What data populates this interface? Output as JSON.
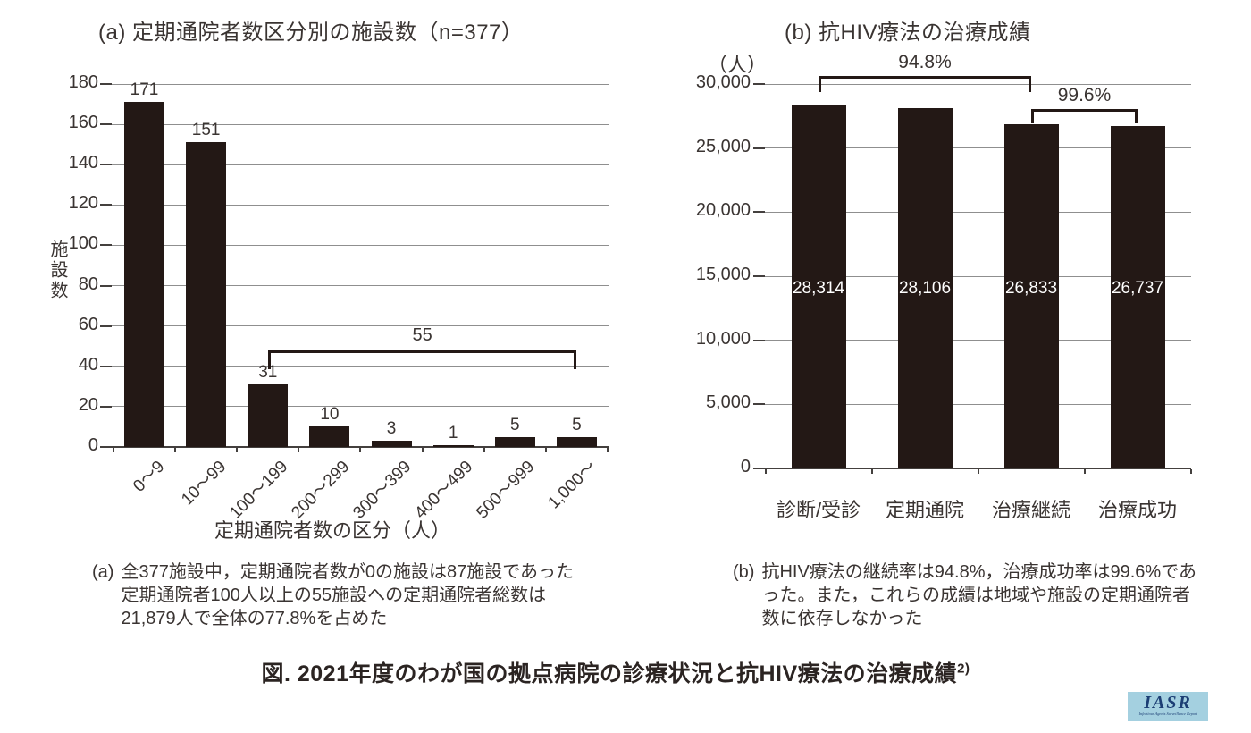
{
  "colors": {
    "bar": "#231815",
    "grid": "#8f8f8f",
    "axis": "#44403e",
    "text": "#3a3432",
    "bar_value_light": "#ffffff",
    "logo_bg": "#a4d0e0",
    "logo_fg": "#1c3e74"
  },
  "chart_data": [
    {
      "id": "a",
      "type": "bar",
      "title": "(a) 定期通院者数区分別の施設数（n=377）",
      "ylabel": "施設数",
      "xlabel": "定期通院者数の区分（人）",
      "categories": [
        "0～9",
        "10～99",
        "100～199",
        "200～299",
        "300～399",
        "400～499",
        "500～999",
        "1,000～"
      ],
      "values": [
        171,
        151,
        31,
        10,
        3,
        1,
        5,
        5
      ],
      "value_labels": [
        "171",
        "151",
        "31",
        "10",
        "3",
        "1",
        "5",
        "5"
      ],
      "ylim": [
        0,
        180
      ],
      "yticks": [
        {
          "v": 0,
          "label": "0"
        },
        {
          "v": 20,
          "label": "20"
        },
        {
          "v": 40,
          "label": "40"
        },
        {
          "v": 60,
          "label": "60"
        },
        {
          "v": 80,
          "label": "80"
        },
        {
          "v": 100,
          "label": "100"
        },
        {
          "v": 120,
          "label": "120"
        },
        {
          "v": 140,
          "label": "140"
        },
        {
          "v": 160,
          "label": "160"
        },
        {
          "v": 180,
          "label": "180"
        }
      ],
      "grid": true,
      "legend": "none",
      "brackets": [
        {
          "label": "55",
          "from": 2,
          "to": 7
        }
      ],
      "caption": {
        "prefix": "(a)",
        "lines": [
          "全377施設中，定期通院者数が0の施設は87施設であった",
          "定期通院者100人以上の55施設への定期通院者総数は",
          "21,879人で全体の77.8%を占めた"
        ]
      }
    },
    {
      "id": "b",
      "type": "bar",
      "title": "(b)  抗HIV療法の治療成績",
      "unit_label": "（人）",
      "categories": [
        "診断/受診",
        "定期通院",
        "治療継続",
        "治療成功"
      ],
      "values": [
        28314,
        28106,
        26833,
        26737
      ],
      "value_labels": [
        "28,314",
        "28,106",
        "26,833",
        "26,737"
      ],
      "ylim": [
        0,
        30000
      ],
      "yticks": [
        {
          "v": 0,
          "label": "0"
        },
        {
          "v": 5000,
          "label": "5,000"
        },
        {
          "v": 10000,
          "label": "10,000"
        },
        {
          "v": 15000,
          "label": "15,000"
        },
        {
          "v": 20000,
          "label": "20,000"
        },
        {
          "v": 25000,
          "label": "25,000"
        },
        {
          "v": 30000,
          "label": "30,000"
        }
      ],
      "grid": true,
      "legend": "none",
      "brackets": [
        {
          "label": "94.8%",
          "from": 0,
          "to": 2
        },
        {
          "label": "99.6%",
          "from": 2,
          "to": 3
        }
      ],
      "caption": {
        "prefix": "(b)",
        "lines": [
          "抗HIV療法の継続率は94.8%，治療成功率は99.6%であ",
          "った。また，これらの成績は地域や施設の定期通院者",
          "数に依存しなかった"
        ]
      }
    }
  ],
  "figure_caption": {
    "text": "図. 2021年度のわが国の拠点病院の診療状況と抗HIV療法の治療成績",
    "superscript": "2)"
  },
  "logo": {
    "text": "IASR",
    "subtext": "Infectious Agents Surveillance Report"
  }
}
